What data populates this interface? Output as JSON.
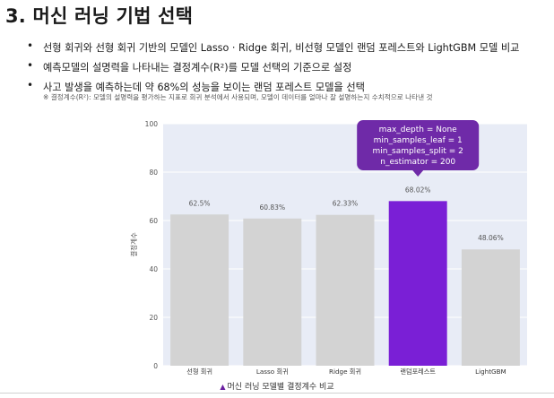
{
  "slide": {
    "title": "3. 머신 러닝 기법 선택",
    "bullets": [
      "선형 회귀와 선형 회귀 기반의 모델인 Lasso · Ridge 회귀, 비선형 모델인 랜덤 포레스트와 LightGBM 모델 비교",
      "예측모델의 설명력을 나타내는 결정계수(R²)를 모델 선택의 기준으로 설정",
      "사고 발생을 예측하는데 약 68%의 성능을 보이는 랜덤 포레스트 모델을 선택"
    ],
    "bullet_symbol": "•",
    "note": "※ 결정계수(R²): 모델의 설명력을 평가하는 지표로 회귀 분석에서 사용되며, 모델이 데이터를 얼마나 잘 설명하는지 수치적으로 나타낸 것",
    "caption": "머신 러닝 모델별 결정계수 비교",
    "caption_marker": "▲"
  },
  "chart_data": {
    "type": "bar",
    "categories": [
      "선형 회귀",
      "Lasso 회귀",
      "Ridge 회귀",
      "랜덤포레스트",
      "LightGBM"
    ],
    "values": [
      62.5,
      60.83,
      62.33,
      68.02,
      48.06
    ],
    "data_labels": [
      "62.5%",
      "60.83%",
      "62.33%",
      "68.02%",
      "48.06%"
    ],
    "highlight_index": 3,
    "ylabel": "결정계수",
    "ylim": [
      0,
      100
    ],
    "yticks": [
      0,
      20,
      40,
      60,
      80,
      100
    ],
    "grid": true,
    "colors": {
      "bar": "#d3d3d3",
      "highlight": "#7a1fd6",
      "plot_bg": "#e8ecf6",
      "grid": "#ffffff",
      "annotation_bg": "#6f2aa8"
    },
    "annotation": {
      "lines": [
        "max_depth = None",
        "min_samples_leaf = 1",
        "min_samples_split = 2",
        "n_estimator = 200"
      ]
    }
  }
}
